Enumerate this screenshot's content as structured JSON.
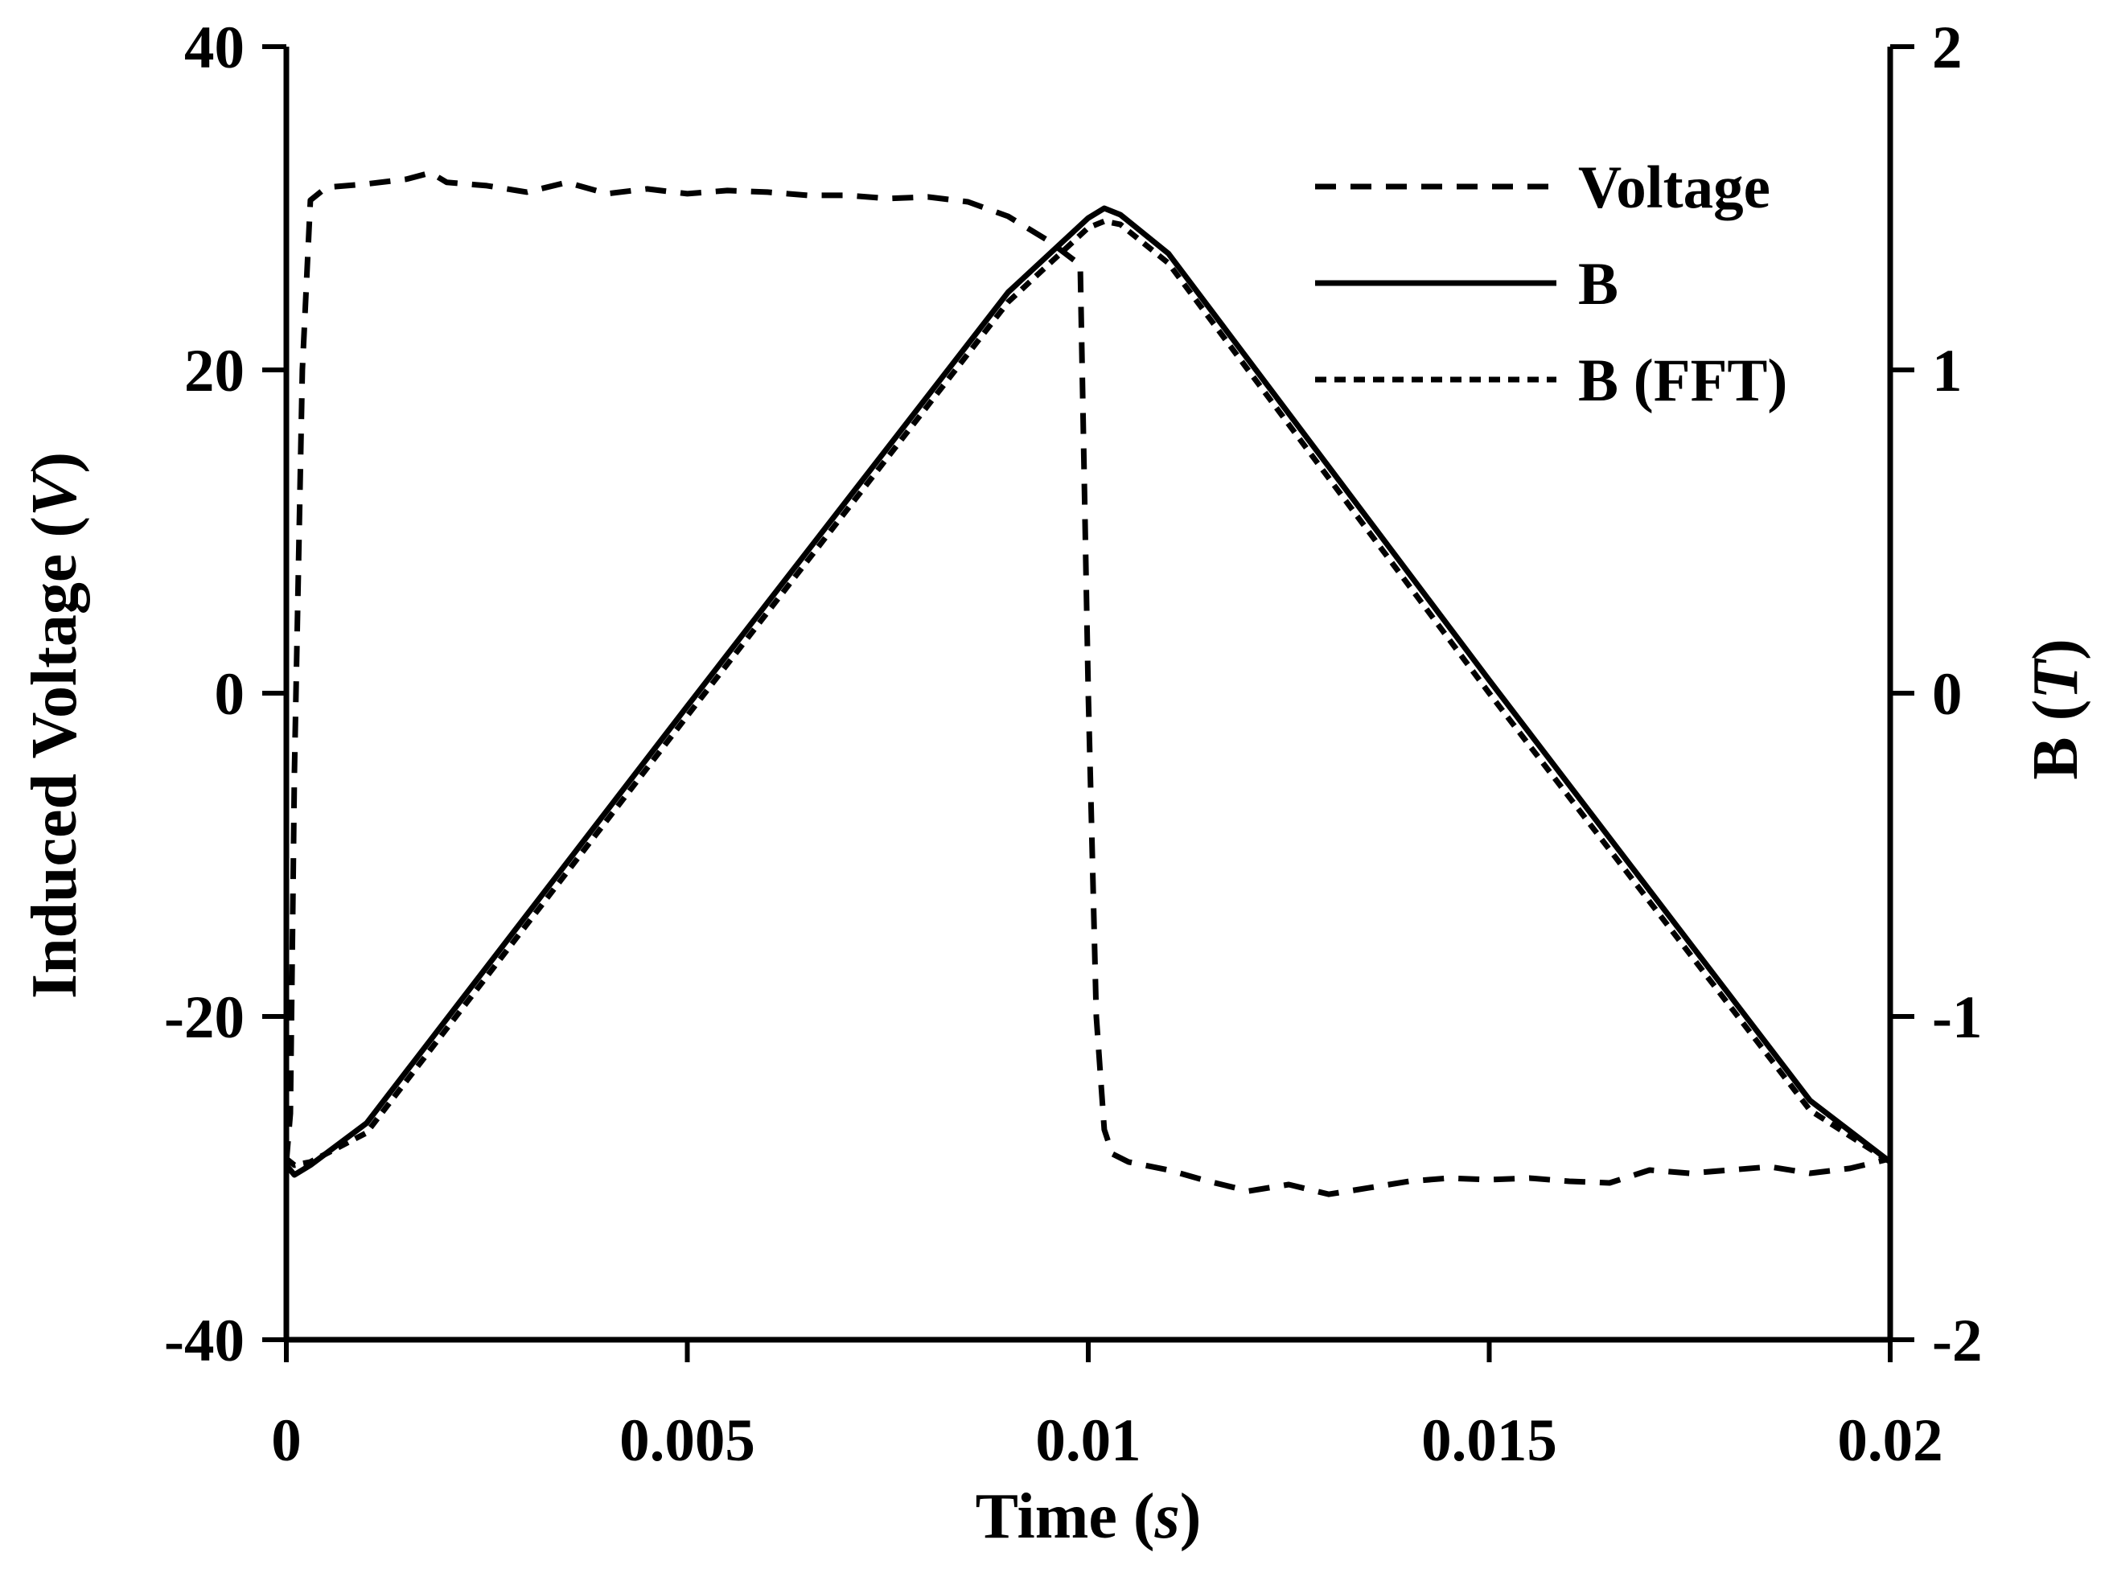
{
  "chart_data": {
    "type": "line",
    "title": "",
    "xlabel": {
      "main": "Time (",
      "italic": "s",
      "end": ")"
    },
    "ylabel_left": {
      "main": "Induced Voltage (",
      "italic": "V",
      "end": ")"
    },
    "ylabel_right": {
      "main": "B (",
      "italic": "T",
      "end": ")"
    },
    "xlim": [
      0,
      0.02
    ],
    "ylim_left": [
      -40,
      40
    ],
    "ylim_right": [
      -2,
      2
    ],
    "x_ticks": [
      0,
      0.005,
      0.01,
      0.015,
      0.02
    ],
    "x_tick_labels": [
      "0",
      "0.005",
      "0.01",
      "0.015",
      "0.02"
    ],
    "y_left_ticks": [
      -40,
      -20,
      0,
      20,
      40
    ],
    "y_left_tick_labels": [
      "-40",
      "-20",
      "0",
      "20",
      "40"
    ],
    "y_right_ticks": [
      -2,
      -1,
      0,
      1,
      2
    ],
    "y_right_tick_labels": [
      "-2",
      "-1",
      "0",
      "1",
      "2"
    ],
    "grid": false,
    "legend_position": "top-right",
    "series": [
      {
        "name": "Voltage",
        "axis": "left",
        "style": "dashed",
        "color": "#000000",
        "x": [
          0,
          5e-05,
          0.0001,
          0.0002,
          0.0003,
          0.0005,
          0.001,
          0.0015,
          0.0018,
          0.002,
          0.0025,
          0.003,
          0.0035,
          0.004,
          0.0045,
          0.005,
          0.0055,
          0.006,
          0.0065,
          0.007,
          0.0075,
          0.008,
          0.0085,
          0.009,
          0.0095,
          0.0099,
          0.01,
          0.0101,
          0.0102,
          0.0103,
          0.0105,
          0.011,
          0.0115,
          0.012,
          0.0125,
          0.013,
          0.0135,
          0.014,
          0.0145,
          0.015,
          0.0155,
          0.016,
          0.0165,
          0.017,
          0.0175,
          0.018,
          0.0185,
          0.019,
          0.0195,
          0.02
        ],
        "y": [
          -29,
          -26,
          -5,
          20,
          30.5,
          31.3,
          31.5,
          31.8,
          32.2,
          31.6,
          31.4,
          31.0,
          31.6,
          30.9,
          31.2,
          30.9,
          31.1,
          31.0,
          30.8,
          30.8,
          30.6,
          30.7,
          30.4,
          29.5,
          28,
          26.5,
          0,
          -20,
          -27,
          -28.5,
          -29,
          -29.5,
          -30.2,
          -30.8,
          -30.4,
          -31.0,
          -30.6,
          -30.2,
          -30.0,
          -30.1,
          -30.0,
          -30.2,
          -30.3,
          -29.5,
          -29.7,
          -29.5,
          -29.3,
          -29.7,
          -29.4,
          -28.8
        ]
      },
      {
        "name": "B",
        "axis": "right",
        "style": "solid",
        "color": "#000000",
        "x": [
          0,
          0.0001,
          0.0003,
          0.001,
          0.005,
          0.009,
          0.01,
          0.0102,
          0.0104,
          0.011,
          0.015,
          0.019,
          0.02
        ],
        "y": [
          -1.46,
          -1.49,
          -1.46,
          -1.33,
          -0.04,
          1.24,
          1.47,
          1.5,
          1.48,
          1.36,
          0.04,
          -1.26,
          -1.45
        ]
      },
      {
        "name": "B (FFT)",
        "axis": "right",
        "style": "dotted",
        "color": "#000000",
        "x": [
          0,
          0.0001,
          0.0003,
          0.001,
          0.005,
          0.009,
          0.01,
          0.0102,
          0.0104,
          0.011,
          0.015,
          0.019,
          0.02
        ],
        "y": [
          -1.44,
          -1.46,
          -1.45,
          -1.36,
          -0.07,
          1.21,
          1.44,
          1.46,
          1.45,
          1.33,
          0.0,
          -1.29,
          -1.45
        ]
      }
    ]
  }
}
